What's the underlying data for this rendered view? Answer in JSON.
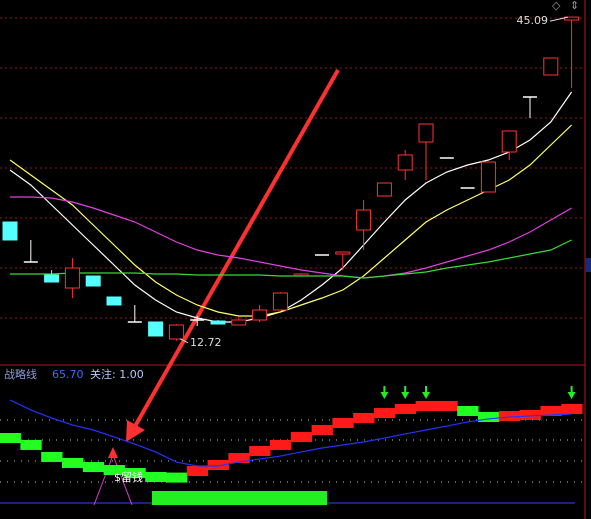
{
  "chart_data": [
    {
      "type": "candlestick",
      "categories": [
        null,
        null,
        null,
        null,
        null,
        null,
        null,
        null,
        null,
        null,
        null,
        null,
        null,
        null,
        null,
        null,
        null,
        null,
        null,
        null,
        null,
        null,
        null,
        null,
        null,
        null,
        null,
        null
      ],
      "open": [
        24.6,
        20.6,
        19.3,
        18.0,
        19.2,
        17.1,
        14.6,
        14.6,
        12.9,
        14.8,
        14.7,
        14.3,
        14.8,
        15.8,
        19.3,
        21.3,
        21.4,
        23.8,
        27.2,
        29.8,
        32.6,
        31.0,
        28.0,
        27.6,
        31.6,
        37.1,
        39.3,
        44.8
      ],
      "close": [
        22.8,
        20.6,
        18.6,
        20.0,
        18.2,
        16.3,
        14.6,
        13.2,
        14.3,
        14.8,
        14.4,
        14.8,
        15.8,
        17.5,
        19.4,
        21.3,
        21.6,
        25.8,
        28.5,
        31.3,
        34.4,
        31.0,
        28.0,
        30.6,
        33.7,
        37.1,
        41.0,
        45.09
      ],
      "high": [
        24.6,
        22.8,
        19.8,
        21.0,
        19.2,
        17.1,
        16.3,
        14.6,
        14.4,
        15.2,
        14.8,
        15.1,
        16.3,
        17.6,
        19.5,
        21.3,
        21.6,
        26.8,
        28.5,
        31.8,
        34.4,
        31.0,
        28.0,
        30.6,
        33.7,
        37.1,
        41.0,
        45.09
      ],
      "low": [
        22.8,
        20.6,
        18.6,
        17.0,
        18.2,
        16.3,
        14.6,
        13.2,
        12.72,
        14.2,
        14.4,
        14.3,
        14.6,
        15.8,
        19.2,
        21.3,
        19.8,
        21.8,
        27.2,
        28.8,
        28.8,
        31.0,
        28.0,
        27.6,
        30.8,
        35.0,
        39.3,
        38.0
      ],
      "up_color": "#ff3232",
      "down_color": "#54ffff",
      "flat_color": "#ffffff",
      "ylim": [
        10.3,
        46.8
      ],
      "high_label": 45.09,
      "low_label": 12.72,
      "series": [
        {
          "color": "#ffffff",
          "values": [
            29.8,
            28.3,
            26.3,
            24.3,
            22.3,
            20.3,
            18.3,
            16.8,
            15.6,
            15.0,
            14.6,
            14.6,
            15.0,
            15.6,
            16.8,
            18.3,
            20.0,
            22.3,
            24.6,
            26.8,
            28.5,
            29.6,
            30.3,
            30.8,
            31.6,
            32.8,
            34.6,
            37.6
          ]
        },
        {
          "color": "#ffff66",
          "values": [
            30.8,
            29.3,
            27.8,
            26.3,
            24.3,
            22.3,
            20.3,
            18.6,
            17.3,
            16.3,
            15.6,
            15.2,
            15.2,
            15.6,
            16.3,
            17.0,
            17.8,
            19.2,
            21.0,
            22.8,
            24.6,
            25.8,
            26.8,
            27.8,
            28.8,
            30.3,
            32.3,
            34.3
          ]
        },
        {
          "color": "#e040e0",
          "values": [
            27.1,
            27.1,
            27.0,
            26.6,
            26.0,
            25.3,
            24.6,
            23.6,
            22.6,
            21.8,
            21.3,
            21.0,
            20.6,
            20.2,
            19.8,
            19.5,
            19.2,
            19.0,
            19.2,
            19.5,
            20.0,
            20.6,
            21.2,
            21.8,
            22.6,
            23.6,
            24.8,
            26.0
          ]
        },
        {
          "color": "#33dd33",
          "values": [
            19.4,
            19.4,
            19.4,
            19.5,
            19.5,
            19.5,
            19.5,
            19.4,
            19.4,
            19.3,
            19.3,
            19.3,
            19.3,
            19.2,
            19.2,
            19.2,
            19.2,
            19.0,
            19.2,
            19.4,
            19.6,
            20.0,
            20.3,
            20.6,
            21.0,
            21.4,
            21.8,
            22.8
          ]
        }
      ]
    },
    {
      "type": "step",
      "title": "战略线",
      "title_value": "65.70",
      "subtitle": "关注: 1.00",
      "annotation": "$留钱",
      "ylim": [
        0,
        100
      ],
      "up_color": "#ff1a1a",
      "down_color": "#22ff22",
      "values": [
        60,
        54.2,
        44.2,
        39.2,
        35.8,
        33.3,
        30.8,
        27.5,
        27.0,
        32.5,
        37.5,
        43.3,
        49.2,
        54.2,
        60.8,
        66.7,
        72.5,
        76.7,
        80.8,
        84.2,
        86.7,
        86.7,
        82.5,
        77.5,
        78.3,
        79.2,
        82.5,
        84.2
      ],
      "line": {
        "color": "#2233ff",
        "values": [
          87.5,
          79.2,
          72.5,
          66.7,
          62.5,
          56.7,
          50.8,
          44.2,
          35.8,
          32.5,
          32.5,
          35.8,
          38.3,
          40.8,
          44.2,
          47.5,
          50,
          52.5,
          55.8,
          59.2,
          62.5,
          65.8,
          69.2,
          71.7,
          73.3,
          74.2,
          75,
          75.8
        ]
      },
      "signals": [
        18,
        19,
        20,
        27
      ],
      "signal_color": "#22ee22"
    }
  ]
}
